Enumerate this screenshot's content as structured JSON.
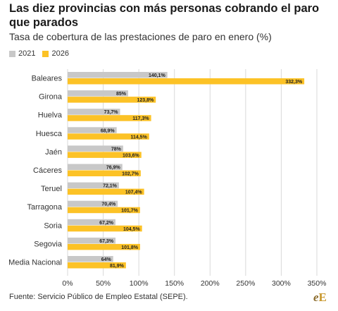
{
  "title": "Las diez provincias con más personas cobrando el paro que parados",
  "subtitle": "Tasa de cobertura de las prestaciones de paro en enero (%)",
  "footer": "Fuente: Servicio Público de Empleo Estatal (SEPE).",
  "logo_text": "eE",
  "colors": {
    "series_2021": "#c8c8c8",
    "series_2026": "#fcc226",
    "grid": "#d9d9d9",
    "text": "#333333"
  },
  "chart_data": {
    "type": "bar",
    "orientation": "horizontal",
    "categories": [
      "Baleares",
      "Girona",
      "Huelva",
      "Huesca",
      "Jaén",
      "Cáceres",
      "Teruel",
      "Tarragona",
      "Soria",
      "Segovia",
      "Media Nacional"
    ],
    "series": [
      {
        "name": "2021",
        "values": [
          140.1,
          85,
          73.7,
          68.9,
          78,
          76.9,
          72.1,
          70.4,
          67.2,
          67.3,
          64
        ],
        "labels": [
          "140,1%",
          "85%",
          "73,7%",
          "68,9%",
          "78%",
          "76,9%",
          "72,1%",
          "70,4%",
          "67,2%",
          "67,3%",
          "64%"
        ]
      },
      {
        "name": "2026",
        "values": [
          332.3,
          123.8,
          117.3,
          114.5,
          103.6,
          102.7,
          107.4,
          101.7,
          104.5,
          101.8,
          81.9
        ],
        "labels": [
          "332,3%",
          "123,8%",
          "117,3%",
          "114,5%",
          "103,6%",
          "102,7%",
          "107,4%",
          "101,7%",
          "104,5%",
          "101,8%",
          "81,9%"
        ]
      }
    ],
    "xlim": [
      0,
      350
    ],
    "xticks": [
      0,
      50,
      100,
      150,
      200,
      250,
      300,
      350
    ],
    "xtick_labels": [
      "0%",
      "50%",
      "100%",
      "150%",
      "200%",
      "250%",
      "300%",
      "350%"
    ],
    "grid": true,
    "legend": "top-left"
  }
}
